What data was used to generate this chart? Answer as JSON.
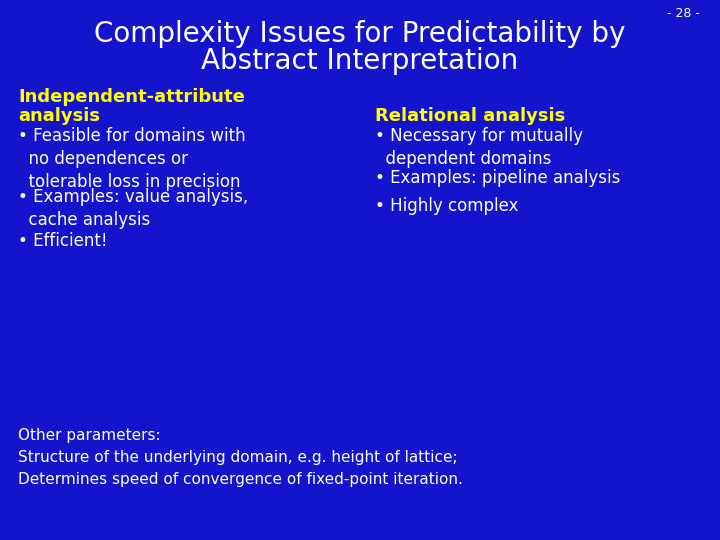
{
  "background_color": "#1414CC",
  "title_line1": "Complexity Issues for Predictability by",
  "title_line2": "Abstract Interpretation",
  "title_color": "#FFFFFF",
  "slide_number": "- 28 -",
  "slide_number_color": "#FFFFFF",
  "left_header_line1": "Independent-attribute",
  "left_header_line2": "analysis",
  "left_header_color": "#FFFF00",
  "left_bullets": [
    "Feasible for domains with\nno dependences or\ntolerable loss in precision",
    "Examples: value analysis,\ncache analysis",
    "Efficient!"
  ],
  "left_bullet_color": "#FFFFFF",
  "right_header": "Relational analysis",
  "right_header_color": "#FFFF00",
  "right_bullets": [
    "Necessary for mutually\ndependent domains",
    "Examples: pipeline analysis",
    "Highly complex"
  ],
  "right_bullet_color": "#FFFFFF",
  "footer_color": "#FFFFFF",
  "footer_lines": [
    "Other parameters:",
    "Structure of the underlying domain, e.g. height of lattice;",
    "Determines speed of convergence of fixed-point iteration."
  ],
  "title_fontsize": 20,
  "header_fontsize": 13,
  "bullet_fontsize": 12,
  "footer_fontsize": 11,
  "slide_num_fontsize": 9
}
